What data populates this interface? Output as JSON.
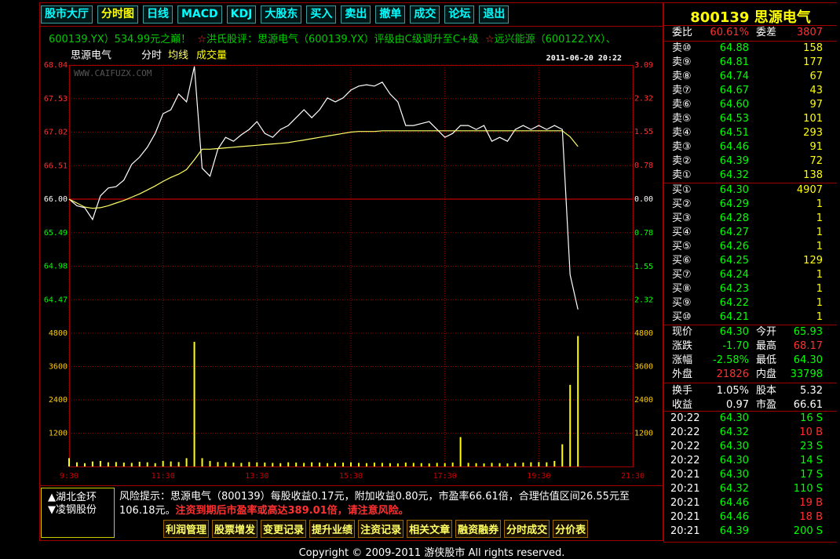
{
  "toolbar": [
    "股市大厅",
    "分时图",
    "日线",
    "MACD",
    "KDJ",
    "大股东",
    "买入",
    "卖出",
    "撤单",
    "成交",
    "论坛",
    "退出"
  ],
  "ticker": {
    "text1": "600139.YX）534.99元之巅！",
    "star1": "☆",
    "text2": "洪氏股评：思源电气（600139.YX）评级由C级调升至C+级",
    "star2": "☆",
    "text3": "远兴能源（600122.YX）、"
  },
  "chart_data": [
    {
      "type": "line",
      "title": "思源电气",
      "subtitle": "分时",
      "timestamp": "2011-06-20 20:22",
      "watermark": "WWW.CAIFUZX.COM",
      "x": [
        "9:30",
        "9:40",
        "9:50",
        "10:00",
        "10:10",
        "10:20",
        "10:30",
        "10:40",
        "10:50",
        "11:00",
        "11:10",
        "11:20",
        "11:30",
        "11:40",
        "11:50",
        "12:00",
        "12:10",
        "12:20",
        "12:30",
        "12:40",
        "12:50",
        "13:00",
        "13:10",
        "13:20",
        "13:30",
        "13:40",
        "13:50",
        "14:00",
        "14:10",
        "14:20",
        "14:30",
        "14:40",
        "14:50",
        "15:00",
        "15:10",
        "15:20",
        "15:30",
        "15:40",
        "15:50",
        "16:00",
        "16:10",
        "16:20",
        "16:30",
        "16:40",
        "16:50",
        "17:00",
        "17:10",
        "17:20",
        "17:30",
        "17:40",
        "17:50",
        "18:00",
        "18:10",
        "18:20",
        "18:30",
        "18:40",
        "18:50",
        "19:00",
        "19:10",
        "19:20",
        "19:30",
        "19:40",
        "19:50",
        "20:00",
        "20:10",
        "20:20"
      ],
      "xlim": [
        "9:30",
        "21:30"
      ],
      "series": [
        {
          "name": "分时",
          "color": "#ffffff",
          "legend": false,
          "values": [
            66.0,
            65.9,
            65.87,
            65.69,
            66.05,
            66.17,
            66.19,
            66.29,
            66.53,
            66.64,
            66.79,
            67.0,
            67.3,
            67.36,
            67.6,
            67.48,
            68.02,
            66.47,
            66.35,
            66.76,
            66.94,
            66.88,
            66.98,
            67.06,
            67.18,
            67.0,
            66.94,
            67.06,
            67.12,
            67.24,
            67.36,
            67.24,
            67.36,
            67.54,
            67.48,
            67.54,
            67.66,
            67.72,
            67.74,
            67.72,
            67.78,
            67.6,
            67.48,
            67.12,
            67.12,
            67.15,
            67.18,
            67.06,
            66.94,
            67.0,
            67.12,
            67.12,
            67.06,
            67.12,
            66.88,
            66.94,
            66.88,
            67.06,
            67.12,
            67.06,
            67.12,
            67.06,
            67.12,
            67.06,
            64.85,
            64.32
          ]
        },
        {
          "name": "均线",
          "color": "#ffff66",
          "values": [
            66.0,
            65.94,
            65.88,
            65.86,
            65.87,
            65.9,
            65.94,
            65.98,
            66.03,
            66.08,
            66.14,
            66.2,
            66.27,
            66.33,
            66.38,
            66.45,
            66.6,
            66.76,
            66.76,
            66.77,
            66.78,
            66.79,
            66.8,
            66.81,
            66.82,
            66.83,
            66.84,
            66.85,
            66.86,
            66.88,
            66.9,
            66.92,
            66.94,
            66.96,
            66.98,
            67.0,
            67.02,
            67.03,
            67.03,
            67.03,
            67.04,
            67.04,
            67.04,
            67.04,
            67.04,
            67.04,
            67.04,
            67.04,
            67.04,
            67.04,
            67.04,
            67.04,
            67.04,
            67.04,
            67.04,
            67.04,
            67.04,
            67.04,
            67.04,
            67.04,
            67.04,
            67.04,
            67.04,
            67.04,
            66.95,
            66.8
          ]
        }
      ],
      "ylim": [
        63.96,
        68.04
      ],
      "yticks": [
        68.04,
        67.53,
        67.02,
        66.51,
        {
          "value": 66,
          "label": "66.00"
        },
        65.49,
        64.98,
        64.47
      ],
      "y2lim": [
        -3.09,
        3.09
      ],
      "y2ticks": [
        3.09,
        2.32,
        1.55,
        0.78,
        {
          "value": 0,
          "label": "0.00"
        },
        {
          "value": -0.78,
          "label": "0.78"
        },
        {
          "value": -1.55,
          "label": "1.55"
        },
        {
          "value": -2.32,
          "label": "2.32"
        }
      ],
      "grid": true
    },
    {
      "type": "bar",
      "x": [
        "9:30",
        "9:40",
        "9:50",
        "10:00",
        "10:10",
        "10:20",
        "10:30",
        "10:40",
        "10:50",
        "11:00",
        "11:10",
        "11:20",
        "11:30",
        "11:40",
        "11:50",
        "12:00",
        "12:10",
        "12:20",
        "12:30",
        "12:40",
        "12:50",
        "13:00",
        "13:10",
        "13:20",
        "13:30",
        "13:40",
        "13:50",
        "14:00",
        "14:10",
        "14:20",
        "14:30",
        "14:40",
        "14:50",
        "15:00",
        "15:10",
        "15:20",
        "15:30",
        "15:40",
        "15:50",
        "16:00",
        "16:10",
        "16:20",
        "16:30",
        "16:40",
        "16:50",
        "17:00",
        "17:10",
        "17:20",
        "17:30",
        "17:40",
        "17:50",
        "18:00",
        "18:10",
        "18:20",
        "18:30",
        "18:40",
        "18:50",
        "19:00",
        "19:10",
        "19:20",
        "19:30",
        "19:40",
        "19:50",
        "20:00",
        "20:10",
        "20:20"
      ],
      "xlim": [
        "9:30",
        "21:30"
      ],
      "xticks": [
        "9:30",
        "11:30",
        "13:30",
        "15:30",
        "17:30",
        "19:30",
        "21:30"
      ],
      "series": [
        {
          "name": "成交量",
          "color": "#ffff00",
          "values": [
            300,
            150,
            120,
            180,
            200,
            150,
            160,
            140,
            130,
            170,
            150,
            120,
            200,
            180,
            160,
            300,
            4490,
            300,
            200,
            160,
            150,
            140,
            130,
            160,
            150,
            140,
            130,
            120,
            150,
            140,
            130,
            150,
            140,
            120,
            130,
            140,
            150,
            130,
            120,
            140,
            130,
            120,
            110,
            140,
            130,
            120,
            110,
            130,
            120,
            140,
            1060,
            130,
            120,
            110,
            130,
            120,
            110,
            130,
            140,
            150,
            160,
            150,
            200,
            800,
            2940,
            4700
          ]
        }
      ],
      "ylim": [
        0,
        4800
      ],
      "yticks": [
        1200,
        2400,
        3600,
        4800
      ],
      "grid": true
    }
  ],
  "quote": {
    "code": "800139",
    "name": "思源电气",
    "ratio": [
      "委比",
      "60.61%",
      "委差",
      "3807"
    ],
    "sell": [
      [
        "卖⑩",
        "64.88",
        "158"
      ],
      [
        "卖⑨",
        "64.81",
        "177"
      ],
      [
        "卖⑧",
        "64.74",
        "67"
      ],
      [
        "卖⑦",
        "64.67",
        "43"
      ],
      [
        "卖⑥",
        "64.60",
        "97"
      ],
      [
        "卖⑤",
        "64.53",
        "101"
      ],
      [
        "卖④",
        "64.51",
        "293"
      ],
      [
        "卖③",
        "64.46",
        "91"
      ],
      [
        "卖②",
        "64.39",
        "72"
      ],
      [
        "卖①",
        "64.32",
        "138"
      ]
    ],
    "buy": [
      [
        "买①",
        "64.30",
        "4907"
      ],
      [
        "买②",
        "64.29",
        "1"
      ],
      [
        "买③",
        "64.28",
        "1"
      ],
      [
        "买④",
        "64.27",
        "1"
      ],
      [
        "买⑤",
        "64.26",
        "1"
      ],
      [
        "买⑥",
        "64.25",
        "129"
      ],
      [
        "买⑦",
        "64.24",
        "1"
      ],
      [
        "买⑧",
        "64.23",
        "1"
      ],
      [
        "买⑨",
        "64.22",
        "1"
      ],
      [
        "买⑩",
        "64.21",
        "1"
      ]
    ],
    "stats": [
      {
        "cells": [
          "现价",
          "64.30",
          "今开",
          "65.93"
        ],
        "colors": [
          "#00ff00",
          "#00ff00"
        ]
      },
      {
        "cells": [
          "涨跌",
          "-1.70",
          "最高",
          "68.17"
        ],
        "colors": [
          "#00ff00",
          "#ff3030"
        ]
      },
      {
        "cells": [
          "涨幅",
          "-2.58%",
          "最低",
          "64.30"
        ],
        "colors": [
          "#00ff00",
          "#00ff00"
        ]
      },
      {
        "cells": [
          "外盘",
          "21826",
          "内盘",
          "33798"
        ],
        "colors": [
          "#ff3030",
          "#00ff00"
        ]
      },
      {
        "cells": [
          "换手",
          "1.05%",
          "股本",
          "5.32"
        ],
        "colors": [
          "#ffffff",
          "#ffffff"
        ]
      },
      {
        "cells": [
          "收益",
          "0.97",
          "市盈",
          "66.61"
        ],
        "colors": [
          "#ffffff",
          "#ffffff"
        ]
      }
    ],
    "trades": [
      {
        "cells": [
          "20:22",
          "64.30",
          "16 S"
        ],
        "color": "#00ff00"
      },
      {
        "cells": [
          "20:22",
          "64.32",
          "10 B"
        ],
        "color": "#ff3030"
      },
      {
        "cells": [
          "20:22",
          "64.30",
          "23 S"
        ],
        "color": "#00ff00"
      },
      {
        "cells": [
          "20:22",
          "64.30",
          "14 S"
        ],
        "color": "#00ff00"
      },
      {
        "cells": [
          "20:21",
          "64.30",
          "17 S"
        ],
        "color": "#00ff00"
      },
      {
        "cells": [
          "20:21",
          "64.32",
          "110 S"
        ],
        "color": "#00ff00"
      },
      {
        "cells": [
          "20:21",
          "64.46",
          "19 B"
        ],
        "color": "#ff3030"
      },
      {
        "cells": [
          "20:21",
          "64.46",
          "18 B"
        ],
        "color": "#ff3030"
      },
      {
        "cells": [
          "20:21",
          "64.39",
          "200 S"
        ],
        "color": "#00ff00"
      }
    ]
  },
  "bottom": {
    "stocks": [
      "▲湖北金环",
      "▼凌钢股份"
    ],
    "risk": "风险提示：思源电气（800139）每股收益0.17元，附加收益0.80元，市盈率66.61倍，合理估值区间26.55元至106.18元。",
    "warning": "注资到期后市盈率或高达389.01倍，请注意风险。",
    "buttons": [
      "利润管理",
      "股票增发",
      "变更记录",
      "提升业绩",
      "注资记录",
      "相关文章",
      "融资融券",
      "分时成交",
      "分价表"
    ]
  },
  "footer": "Copyright © 2009-2011 游侠股市  All rights reserved."
}
